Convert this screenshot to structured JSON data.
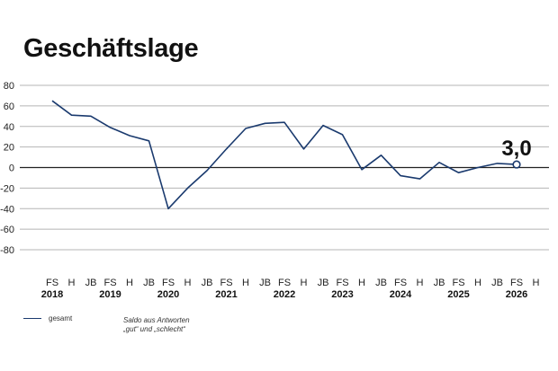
{
  "title": "Geschäftslage",
  "chart_data": {
    "type": "line",
    "ylim": [
      -80,
      80
    ],
    "yticks": [
      80,
      60,
      40,
      20,
      0,
      -20,
      -40,
      -60,
      -80
    ],
    "ytick_labels": [
      "80",
      "60",
      "40",
      "20",
      "0",
      "-20",
      "-40",
      "-60",
      "-80"
    ],
    "x": [
      "FS 2018",
      "H 2018",
      "JB 2019",
      "FS 2019",
      "H 2019",
      "JB 2020",
      "FS 2020",
      "H 2020",
      "JB 2021",
      "FS 2021",
      "H 2021",
      "JB 2022",
      "FS 2022",
      "H 2022",
      "JB 2023",
      "FS 2023",
      "H 2023",
      "JB 2024",
      "FS 2024",
      "H 2024",
      "JB 2025",
      "FS 2025",
      "H 2025",
      "JB 2026",
      "FS 2026"
    ],
    "series": [
      {
        "name": "gesamt",
        "color": "#1a3a6e",
        "values": [
          65,
          51,
          50,
          39,
          31,
          26,
          -40,
          -20,
          -3,
          18,
          38,
          43,
          44,
          18,
          41,
          32,
          -2,
          12,
          -8,
          -11,
          5,
          -5,
          0,
          4,
          3
        ]
      }
    ],
    "tick_labels": [
      "FS",
      "H",
      "JB",
      "FS",
      "H",
      "JB",
      "FS",
      "H",
      "JB",
      "FS",
      "H",
      "JB",
      "FS",
      "H",
      "JB",
      "FS",
      "H",
      "JB",
      "FS",
      "H",
      "JB",
      "FS",
      "H",
      "JB",
      "FS",
      "H"
    ],
    "year_labels": [
      "2018",
      "2019",
      "2020",
      "2021",
      "2022",
      "2023",
      "2024",
      "2025",
      "2026"
    ],
    "annotation": {
      "text": "3,0",
      "index": 24
    },
    "legend": {
      "label": "gesamt",
      "note_line1": "Saldo aus Antworten",
      "note_line2": "„gut“ und „schlecht“"
    }
  }
}
